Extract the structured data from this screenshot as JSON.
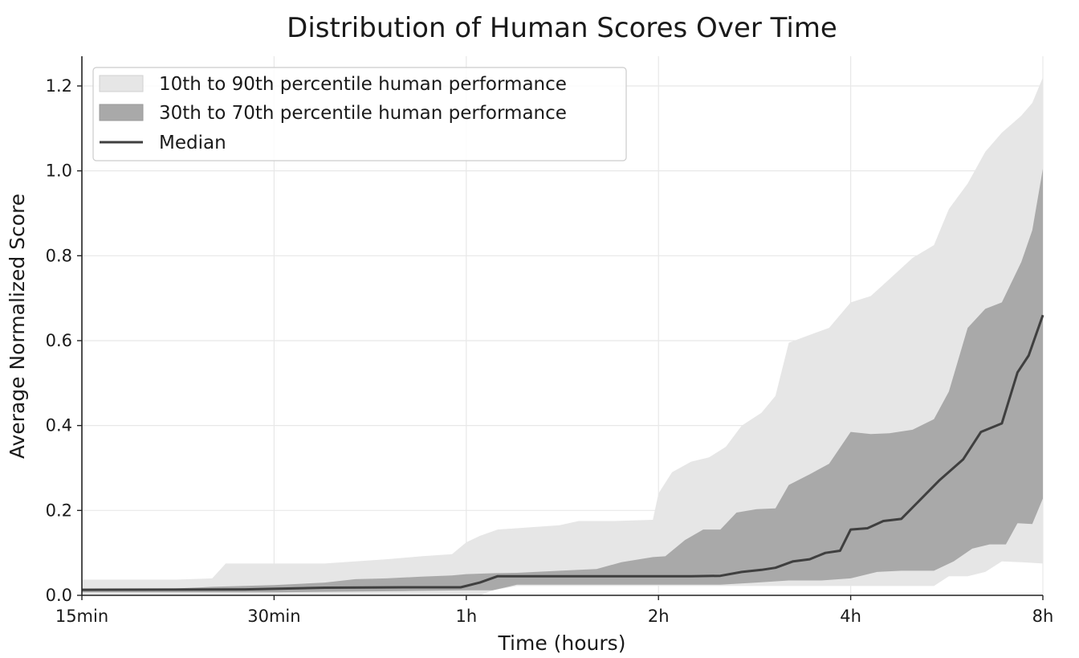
{
  "chart_data": {
    "type": "area",
    "title": "Distribution of Human Scores Over Time",
    "xlabel": "Time (hours)",
    "ylabel": "Average Normalized Score",
    "x_scale": "log",
    "xlim": [
      0.25,
      8
    ],
    "ylim": [
      0,
      1.27
    ],
    "grid": true,
    "legend_position": "top-left",
    "x_ticks": [
      {
        "value": 0.25,
        "label": "15min"
      },
      {
        "value": 0.5,
        "label": "30min"
      },
      {
        "value": 1,
        "label": "1h"
      },
      {
        "value": 2,
        "label": "2h"
      },
      {
        "value": 4,
        "label": "4h"
      },
      {
        "value": 8,
        "label": "8h"
      }
    ],
    "y_ticks": [
      {
        "value": 0.0,
        "label": "0.0"
      },
      {
        "value": 0.2,
        "label": "0.2"
      },
      {
        "value": 0.4,
        "label": "0.4"
      },
      {
        "value": 0.6,
        "label": "0.6"
      },
      {
        "value": 0.8,
        "label": "0.8"
      },
      {
        "value": 1.0,
        "label": "1.0"
      },
      {
        "value": 1.2,
        "label": "1.2"
      }
    ],
    "legend": [
      {
        "label": "10th to 90th percentile human performance",
        "kind": "band",
        "color": "#e6e6e6"
      },
      {
        "label": "30th to 70th percentile human performance",
        "kind": "band",
        "color": "#a9a9a9"
      },
      {
        "label": "Median",
        "kind": "line",
        "color": "#3f3f3f"
      }
    ],
    "series": [
      {
        "name": "10th to 90th percentile human performance",
        "color": "#e6e6e6",
        "upper": [
          [
            0.25,
            0.037
          ],
          [
            0.35,
            0.037
          ],
          [
            0.4,
            0.04
          ],
          [
            0.42,
            0.075
          ],
          [
            0.5,
            0.075
          ],
          [
            0.6,
            0.075
          ],
          [
            0.67,
            0.08
          ],
          [
            0.75,
            0.085
          ],
          [
            0.85,
            0.092
          ],
          [
            0.95,
            0.097
          ],
          [
            1.0,
            0.125
          ],
          [
            1.05,
            0.14
          ],
          [
            1.12,
            0.155
          ],
          [
            1.25,
            0.16
          ],
          [
            1.4,
            0.165
          ],
          [
            1.5,
            0.175
          ],
          [
            1.7,
            0.175
          ],
          [
            1.96,
            0.178
          ],
          [
            2.0,
            0.24
          ],
          [
            2.1,
            0.29
          ],
          [
            2.25,
            0.315
          ],
          [
            2.4,
            0.325
          ],
          [
            2.55,
            0.35
          ],
          [
            2.7,
            0.4
          ],
          [
            2.9,
            0.43
          ],
          [
            3.05,
            0.47
          ],
          [
            3.2,
            0.595
          ],
          [
            3.4,
            0.61
          ],
          [
            3.7,
            0.63
          ],
          [
            4.0,
            0.69
          ],
          [
            4.3,
            0.705
          ],
          [
            4.6,
            0.745
          ],
          [
            5.0,
            0.795
          ],
          [
            5.4,
            0.825
          ],
          [
            5.7,
            0.91
          ],
          [
            6.1,
            0.97
          ],
          [
            6.5,
            1.045
          ],
          [
            6.9,
            1.09
          ],
          [
            7.4,
            1.13
          ],
          [
            7.7,
            1.16
          ],
          [
            8.0,
            1.22
          ]
        ],
        "lower": [
          [
            0.25,
            0.0
          ],
          [
            1.05,
            0.0
          ],
          [
            1.1,
            0.012
          ],
          [
            1.2,
            0.022
          ],
          [
            1.5,
            0.022
          ],
          [
            2.0,
            0.022
          ],
          [
            2.5,
            0.022
          ],
          [
            3.0,
            0.022
          ],
          [
            3.5,
            0.022
          ],
          [
            4.0,
            0.022
          ],
          [
            4.5,
            0.022
          ],
          [
            5.0,
            0.022
          ],
          [
            5.4,
            0.022
          ],
          [
            5.7,
            0.045
          ],
          [
            6.1,
            0.045
          ],
          [
            6.5,
            0.055
          ],
          [
            6.9,
            0.08
          ],
          [
            7.4,
            0.078
          ],
          [
            8.0,
            0.075
          ]
        ]
      },
      {
        "name": "30th to 70th percentile human performance",
        "color": "#a9a9a9",
        "upper": [
          [
            0.25,
            0.016
          ],
          [
            0.35,
            0.016
          ],
          [
            0.4,
            0.02
          ],
          [
            0.5,
            0.024
          ],
          [
            0.6,
            0.03
          ],
          [
            0.67,
            0.038
          ],
          [
            0.75,
            0.04
          ],
          [
            0.85,
            0.044
          ],
          [
            0.95,
            0.047
          ],
          [
            1.0,
            0.05
          ],
          [
            1.1,
            0.052
          ],
          [
            1.2,
            0.053
          ],
          [
            1.4,
            0.058
          ],
          [
            1.6,
            0.062
          ],
          [
            1.75,
            0.078
          ],
          [
            1.96,
            0.09
          ],
          [
            2.05,
            0.092
          ],
          [
            2.2,
            0.13
          ],
          [
            2.35,
            0.155
          ],
          [
            2.5,
            0.155
          ],
          [
            2.65,
            0.195
          ],
          [
            2.85,
            0.203
          ],
          [
            3.05,
            0.205
          ],
          [
            3.2,
            0.26
          ],
          [
            3.45,
            0.285
          ],
          [
            3.7,
            0.31
          ],
          [
            4.0,
            0.385
          ],
          [
            4.3,
            0.38
          ],
          [
            4.6,
            0.382
          ],
          [
            5.0,
            0.39
          ],
          [
            5.4,
            0.415
          ],
          [
            5.7,
            0.48
          ],
          [
            6.1,
            0.63
          ],
          [
            6.5,
            0.675
          ],
          [
            6.9,
            0.69
          ],
          [
            7.4,
            0.785
          ],
          [
            7.7,
            0.86
          ],
          [
            8.0,
            1.005
          ]
        ],
        "lower": [
          [
            0.25,
            0.007
          ],
          [
            0.5,
            0.007
          ],
          [
            0.8,
            0.01
          ],
          [
            1.0,
            0.012
          ],
          [
            1.1,
            0.012
          ],
          [
            1.2,
            0.025
          ],
          [
            1.5,
            0.025
          ],
          [
            2.0,
            0.025
          ],
          [
            2.5,
            0.025
          ],
          [
            2.85,
            0.03
          ],
          [
            3.2,
            0.035
          ],
          [
            3.6,
            0.035
          ],
          [
            4.0,
            0.04
          ],
          [
            4.4,
            0.055
          ],
          [
            4.8,
            0.058
          ],
          [
            5.4,
            0.058
          ],
          [
            5.8,
            0.08
          ],
          [
            6.2,
            0.11
          ],
          [
            6.6,
            0.12
          ],
          [
            7.0,
            0.12
          ],
          [
            7.3,
            0.17
          ],
          [
            7.7,
            0.168
          ],
          [
            8.0,
            0.228
          ]
        ]
      },
      {
        "name": "Median",
        "color": "#3f3f3f",
        "values": [
          [
            0.25,
            0.013
          ],
          [
            0.45,
            0.014
          ],
          [
            0.6,
            0.018
          ],
          [
            0.8,
            0.019
          ],
          [
            0.98,
            0.019
          ],
          [
            1.05,
            0.03
          ],
          [
            1.12,
            0.045
          ],
          [
            1.5,
            0.045
          ],
          [
            2.0,
            0.045
          ],
          [
            2.25,
            0.045
          ],
          [
            2.5,
            0.046
          ],
          [
            2.7,
            0.055
          ],
          [
            2.9,
            0.06
          ],
          [
            3.05,
            0.065
          ],
          [
            3.25,
            0.08
          ],
          [
            3.45,
            0.085
          ],
          [
            3.65,
            0.1
          ],
          [
            3.85,
            0.105
          ],
          [
            4.0,
            0.155
          ],
          [
            4.25,
            0.158
          ],
          [
            4.5,
            0.175
          ],
          [
            4.8,
            0.18
          ],
          [
            5.1,
            0.22
          ],
          [
            5.5,
            0.27
          ],
          [
            6.0,
            0.32
          ],
          [
            6.4,
            0.385
          ],
          [
            6.9,
            0.405
          ],
          [
            7.3,
            0.525
          ],
          [
            7.6,
            0.565
          ],
          [
            8.0,
            0.66
          ]
        ]
      }
    ]
  }
}
